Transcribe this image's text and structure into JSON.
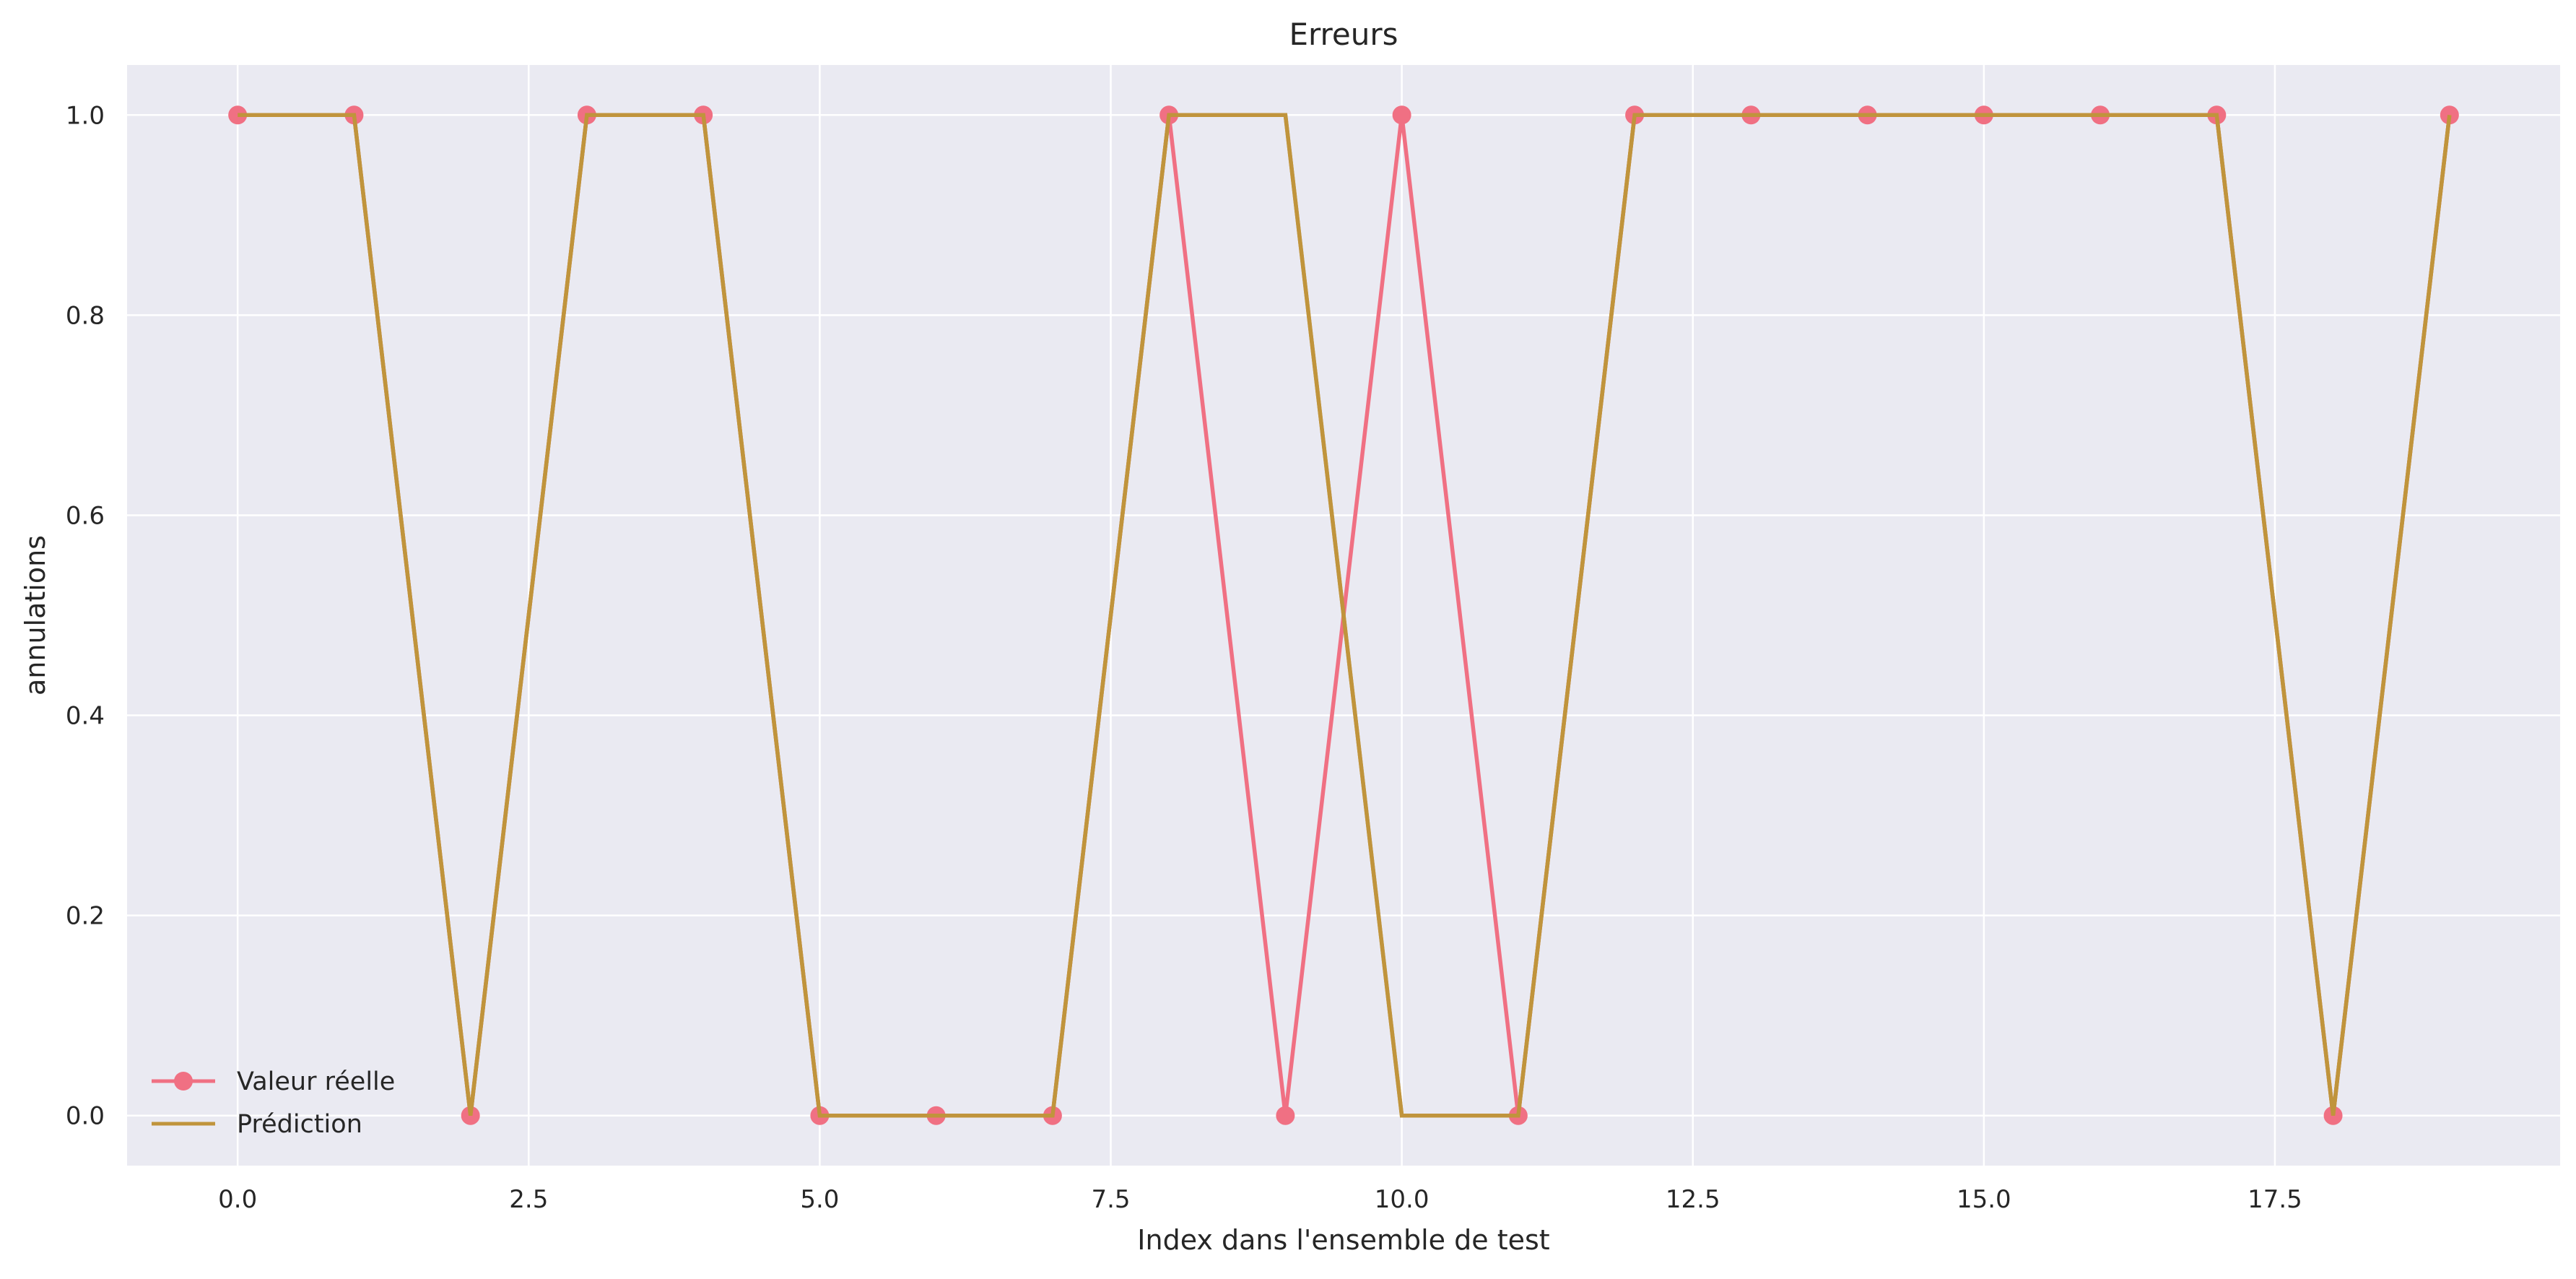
{
  "chart_data": {
    "type": "line",
    "title": "Erreurs",
    "xlabel": "Index dans l'ensemble de test",
    "ylabel": "annulations",
    "xlim": [
      -0.95,
      19.95
    ],
    "ylim": [
      -0.05,
      1.05
    ],
    "x_ticks": [
      0.0,
      2.5,
      5.0,
      7.5,
      10.0,
      12.5,
      15.0,
      17.5
    ],
    "x_tick_labels": [
      "0.0",
      "2.5",
      "5.0",
      "7.5",
      "10.0",
      "12.5",
      "15.0",
      "17.5"
    ],
    "y_ticks": [
      0.0,
      0.2,
      0.4,
      0.6,
      0.8,
      1.0
    ],
    "y_tick_labels": [
      "0.0",
      "0.2",
      "0.4",
      "0.6",
      "0.8",
      "1.0"
    ],
    "grid": true,
    "legend_position": "lower-left",
    "x": [
      0,
      1,
      2,
      3,
      4,
      5,
      6,
      7,
      8,
      9,
      10,
      11,
      12,
      13,
      14,
      15,
      16,
      17,
      18,
      19
    ],
    "series": [
      {
        "name": "Valeur réelle",
        "color": "#f07083",
        "marker": "circle",
        "values": [
          1,
          1,
          0,
          1,
          1,
          0,
          0,
          0,
          1,
          0,
          1,
          0,
          1,
          1,
          1,
          1,
          1,
          1,
          0,
          1
        ]
      },
      {
        "name": "Prédiction",
        "color": "#c0943c",
        "marker": "none",
        "values": [
          1,
          1,
          0,
          1,
          1,
          0,
          0,
          0,
          1,
          1,
          0,
          0,
          1,
          1,
          1,
          1,
          1,
          1,
          0,
          1
        ]
      }
    ],
    "colors": {
      "plot_background": "#eaeaf2",
      "grid": "#ffffff",
      "text": "#262626"
    }
  }
}
